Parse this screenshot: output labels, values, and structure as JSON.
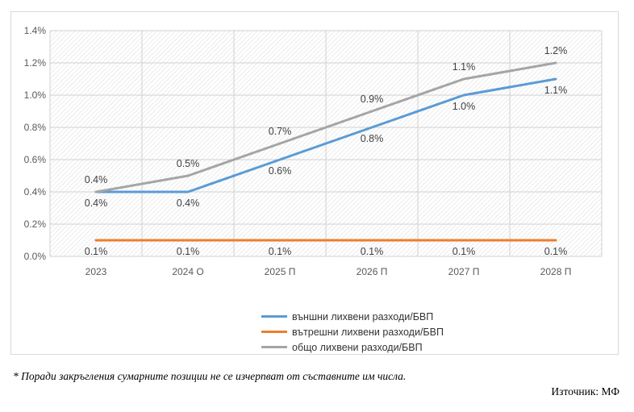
{
  "chart_data": {
    "type": "line",
    "categories": [
      "2023",
      "2024 О",
      "2025 П",
      "2026 П",
      "2027 П",
      "2028 П"
    ],
    "yticks": [
      "0.0%",
      "0.2%",
      "0.4%",
      "0.6%",
      "0.8%",
      "1.0%",
      "1.2%",
      "1.4%"
    ],
    "ylim": [
      0,
      1.4
    ],
    "grid": true,
    "legend_position": "bottom",
    "series": [
      {
        "name": "външни лихвени разходи/БВП",
        "color": "#5b9bd5",
        "values": [
          0.4,
          0.4,
          0.6,
          0.8,
          1.0,
          1.1
        ],
        "labels": [
          "0.4%",
          "0.4%",
          "0.6%",
          "0.8%",
          "1.0%",
          "1.1%"
        ],
        "label_position": "below"
      },
      {
        "name": "вътрешни лихвени разходи/БВП",
        "color": "#ed7d31",
        "values": [
          0.1,
          0.1,
          0.1,
          0.1,
          0.1,
          0.1
        ],
        "labels": [
          "0.1%",
          "0.1%",
          "0.1%",
          "0.1%",
          "0.1%",
          "0.1%"
        ],
        "label_position": "below"
      },
      {
        "name": "общо лихвени разходи/БВП",
        "color": "#a5a5a5",
        "values": [
          0.4,
          0.5,
          0.7,
          0.9,
          1.1,
          1.2
        ],
        "labels": [
          "0.4%",
          "0.5%",
          "0.7%",
          "0.9%",
          "1.1%",
          "1.2%"
        ],
        "label_position": "above"
      }
    ]
  },
  "footnote": "* Поради закръгления сумарните позиции не се изчерпват от съставните им числа.",
  "source": "Източник: МФ"
}
